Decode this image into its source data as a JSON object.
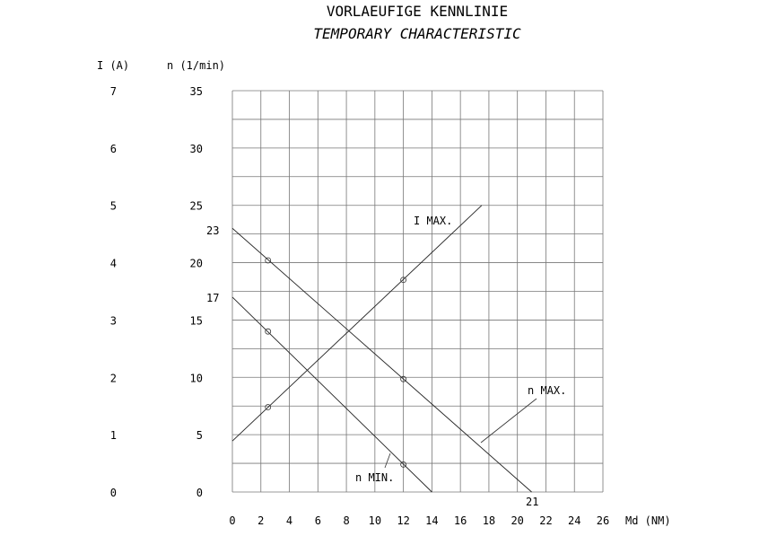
{
  "chart_data": {
    "type": "line",
    "title": "VORLAEUFIGE KENNLINIE",
    "subtitle": "TEMPORARY CHARACTERISTIC",
    "xlabel": "Md (NM)",
    "ylabel_left": "I (A)",
    "ylabel_right": "n (1/min)",
    "xlim": [
      0,
      26
    ],
    "ylim_n": [
      0,
      35
    ],
    "ylim_I": [
      0,
      7
    ],
    "x_ticks": [
      "0",
      "2",
      "4",
      "6",
      "8",
      "10",
      "12",
      "14",
      "16",
      "18",
      "20",
      "22",
      "24",
      "26"
    ],
    "n_ticks": [
      "0",
      "5",
      "10",
      "15",
      "20",
      "25",
      "30",
      "35"
    ],
    "I_ticks": [
      "0",
      "1",
      "2",
      "3",
      "4",
      "5",
      "6",
      "7"
    ],
    "grid": true,
    "series": [
      {
        "name": "n MAX.",
        "axis": "n",
        "x": [
          0,
          21
        ],
        "y": [
          23,
          0
        ],
        "markers_x": [
          2.5,
          12
        ],
        "markers_y": [
          20.2,
          9.85
        ]
      },
      {
        "name": "n MIN.",
        "axis": "n",
        "x": [
          0,
          14
        ],
        "y": [
          17,
          0
        ],
        "markers_x": [
          2.5,
          12
        ],
        "markers_y": [
          14,
          2.4
        ]
      },
      {
        "name": "I MAX.",
        "axis": "I",
        "x": [
          0,
          17.5
        ],
        "y": [
          0.89,
          5.0
        ],
        "markers_x": [
          2.5,
          12
        ],
        "markers_y": [
          1.48,
          3.7
        ]
      }
    ],
    "annotations": [
      "23",
      "17",
      "21"
    ]
  }
}
